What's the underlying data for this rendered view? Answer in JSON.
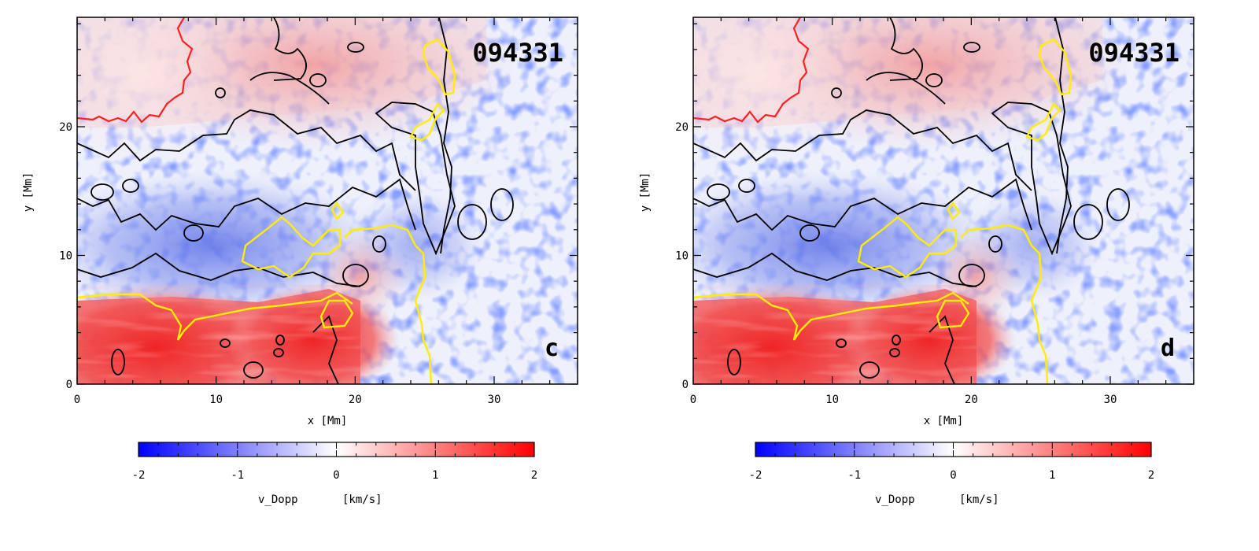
{
  "chart_data": [
    {
      "type": "heatmap",
      "panel_label": "c",
      "timestamp": "094331",
      "xlabel": "x [Mm]",
      "ylabel": "y [Mm]",
      "xlim": [
        0,
        36
      ],
      "ylim": [
        0,
        28.5
      ],
      "x_ticks": [
        "0",
        "10",
        "20",
        "30"
      ],
      "x_tick_values": [
        0,
        10,
        20,
        30
      ],
      "y_ticks": [
        "0",
        "10",
        "20"
      ],
      "y_tick_values": [
        0,
        10,
        20
      ],
      "colorbar": {
        "label": "v_Dopp",
        "unit": "[km/s]",
        "range": [
          -2,
          2
        ],
        "ticks": [
          "-2",
          "-1",
          "0",
          "1",
          "2"
        ],
        "tick_values": [
          -2,
          -1,
          0,
          1,
          2
        ],
        "colormap": [
          "#0000ff",
          "#ffffff",
          "#ff0000"
        ]
      },
      "contours": [
        {
          "color": "#ff2020",
          "name": "red contour"
        },
        {
          "color": "#000000",
          "name": "black contour"
        },
        {
          "color": "#ffee00",
          "name": "yellow contour"
        }
      ]
    },
    {
      "type": "heatmap",
      "panel_label": "d",
      "timestamp": "094331",
      "xlabel": "x [Mm]",
      "ylabel": "y [Mm]",
      "xlim": [
        0,
        36
      ],
      "ylim": [
        0,
        28.5
      ],
      "x_ticks": [
        "0",
        "10",
        "20",
        "30"
      ],
      "x_tick_values": [
        0,
        10,
        20,
        30
      ],
      "y_ticks": [
        "0",
        "10",
        "20"
      ],
      "y_tick_values": [
        0,
        10,
        20
      ],
      "colorbar": {
        "label": "v_Dopp",
        "unit": "[km/s]",
        "range": [
          -2,
          2
        ],
        "ticks": [
          "-2",
          "-1",
          "0",
          "1",
          "2"
        ],
        "tick_values": [
          -2,
          -1,
          0,
          1,
          2
        ],
        "colormap": [
          "#0000ff",
          "#ffffff",
          "#ff0000"
        ]
      },
      "contours": [
        {
          "color": "#ff2020",
          "name": "red contour"
        },
        {
          "color": "#000000",
          "name": "black contour"
        },
        {
          "color": "#ffee00",
          "name": "yellow contour"
        }
      ]
    }
  ]
}
